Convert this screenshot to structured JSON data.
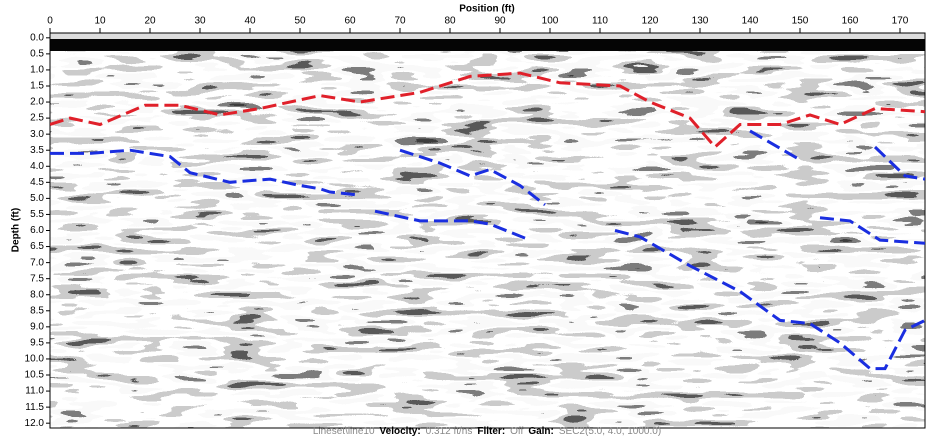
{
  "chart_data": {
    "type": "line",
    "xlabel": "Position (ft)",
    "ylabel": "Depth (ft)",
    "xlim": [
      0,
      175
    ],
    "xticks": [
      0,
      10,
      20,
      30,
      40,
      50,
      60,
      70,
      80,
      90,
      100,
      110,
      120,
      130,
      140,
      150,
      160,
      170
    ],
    "ylim": [
      12.15,
      -0.15
    ],
    "yticks": [
      {
        "value": 0,
        "label": "0.0"
      },
      0.5,
      {
        "value": 1,
        "label": "1.0"
      },
      1.5,
      {
        "value": 2,
        "label": "2.0"
      },
      2.5,
      {
        "value": 3,
        "label": "3.0"
      },
      3.5,
      {
        "value": 4,
        "label": "4.0"
      },
      4.5,
      {
        "value": 5,
        "label": "5.0"
      },
      5.5,
      {
        "value": 6,
        "label": "6.0"
      },
      6.5,
      {
        "value": 7,
        "label": "7.0"
      },
      7.5,
      {
        "value": 8,
        "label": "8.0"
      },
      8.5,
      {
        "value": 9,
        "label": "9.0"
      },
      9.5,
      {
        "value": 10,
        "label": "10.0"
      },
      10.5,
      {
        "value": 11,
        "label": "11.0"
      },
      11.5,
      {
        "value": 12,
        "label": "12.0"
      }
    ],
    "series": [
      {
        "color": "#e0202a",
        "x": [
          0,
          4,
          10,
          19,
          26,
          34,
          42,
          54,
          62,
          74,
          84,
          94,
          102,
          114,
          120,
          128,
          133,
          138,
          146,
          152,
          158,
          165,
          175
        ],
        "values": [
          2.7,
          2.5,
          2.7,
          2.1,
          2.1,
          2.4,
          2.2,
          1.8,
          2.0,
          1.7,
          1.2,
          1.1,
          1.4,
          1.5,
          2.0,
          2.5,
          3.4,
          2.7,
          2.7,
          2.4,
          2.7,
          2.2,
          2.3
        ]
      },
      {
        "color": "#1a2ee0",
        "x": [
          0,
          8,
          16,
          24,
          28,
          36,
          44,
          50,
          54,
          56,
          62,
          66,
          70,
          78,
          84,
          88,
          94,
          99,
          100,
          65,
          74,
          84,
          88,
          96,
          100,
          113,
          118,
          128,
          138,
          146,
          152,
          158,
          164,
          167,
          171,
          175,
          176,
          140,
          150,
          151,
          154,
          160,
          166,
          175,
          176,
          165,
          171,
          175
        ],
        "values": [
          3.6,
          3.6,
          3.5,
          3.7,
          4.2,
          4.5,
          4.4,
          4.6,
          4.7,
          4.8,
          4.9,
          null,
          3.5,
          3.9,
          4.3,
          4.1,
          4.6,
          5.2,
          null,
          5.4,
          5.7,
          5.7,
          5.8,
          6.3,
          null,
          6.0,
          6.2,
          7.1,
          7.9,
          8.8,
          8.9,
          9.5,
          10.3,
          10.3,
          9.1,
          8.8,
          null,
          2.9,
          3.8,
          null,
          5.6,
          5.7,
          6.3,
          6.4,
          null,
          3.4,
          4.3,
          4.4
        ]
      }
    ],
    "footer": [
      {
        "text": "Lineset\\line10",
        "bold": false
      },
      {
        "text": "Velocity:",
        "bold": true
      },
      {
        "text": "0.312 ft/ns",
        "bold": false
      },
      {
        "text": "Filter:",
        "bold": true
      },
      {
        "text": "Off",
        "bold": false
      },
      {
        "text": "Gain:",
        "bold": true
      },
      {
        "text": "SEC2(5.0, 4.0, 1000.0)",
        "bold": false
      }
    ]
  }
}
